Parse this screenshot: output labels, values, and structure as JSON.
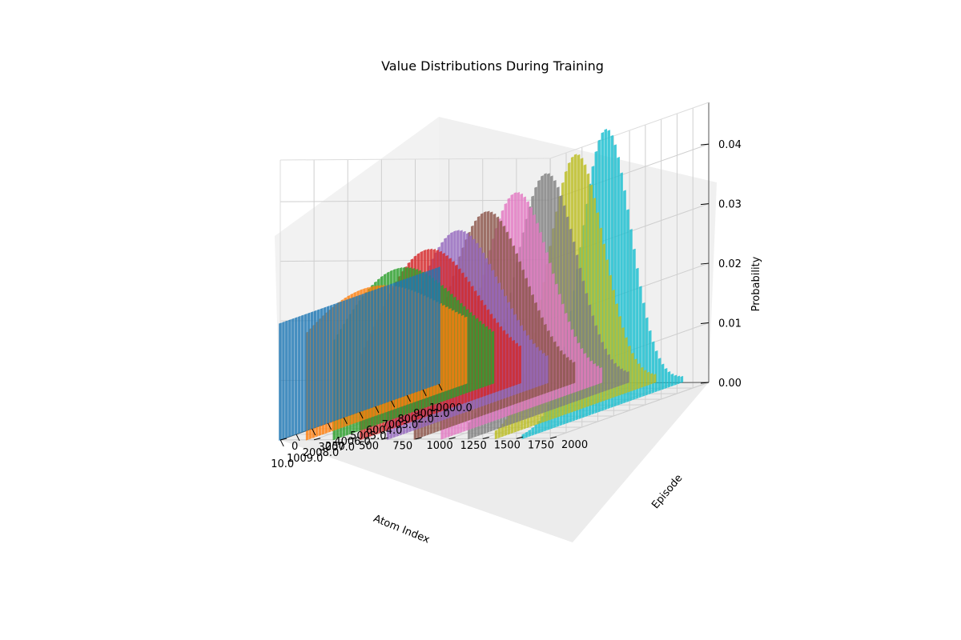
{
  "chart_data": {
    "type": "bar3d",
    "title": "Value Distributions During Training",
    "xlabel": "Atom Index",
    "ylabel": "Episode",
    "zlabel": "Probability",
    "x_tick_labels": [
      "10.0",
      "1009.0",
      "2008.0",
      "3007.0",
      "4006.0",
      "5005.0",
      "6004.0",
      "7003.0",
      "8002.0",
      "9001.0",
      "10000.0"
    ],
    "y_tick_labels": [
      "0",
      "250",
      "500",
      "750",
      "1000",
      "1250",
      "1500",
      "1750",
      "2000"
    ],
    "z_tick_labels": [
      "0.00",
      "0.01",
      "0.02",
      "0.03",
      "0.04"
    ],
    "xlim": [
      0,
      10000
    ],
    "ylim": [
      0,
      2000
    ],
    "zlim": [
      0,
      0.047
    ],
    "atoms": 51,
    "series": [
      {
        "episode": 0,
        "color": "#1f77b4",
        "shape": "uniform",
        "level": 0.0196
      },
      {
        "episode": 200,
        "color": "#ff7f0e",
        "shape": "gaussian",
        "peak": 0.0215,
        "center": 0.35,
        "width": 0.55
      },
      {
        "episode": 400,
        "color": "#2ca02c",
        "shape": "gaussian",
        "peak": 0.0245,
        "center": 0.38,
        "width": 0.42
      },
      {
        "episode": 600,
        "color": "#d62728",
        "shape": "gaussian",
        "peak": 0.0275,
        "center": 0.4,
        "width": 0.34
      },
      {
        "episode": 800,
        "color": "#9467bd",
        "shape": "gaussian",
        "peak": 0.0305,
        "center": 0.42,
        "width": 0.29
      },
      {
        "episode": 1000,
        "color": "#8c564b",
        "shape": "gaussian",
        "peak": 0.0335,
        "center": 0.44,
        "width": 0.255
      },
      {
        "episode": 1200,
        "color": "#e377c2",
        "shape": "gaussian",
        "peak": 0.0365,
        "center": 0.46,
        "width": 0.225
      },
      {
        "episode": 1400,
        "color": "#7f7f7f",
        "shape": "gaussian",
        "peak": 0.0395,
        "center": 0.48,
        "width": 0.2
      },
      {
        "episode": 1600,
        "color": "#bcbd22",
        "shape": "gaussian",
        "peak": 0.0425,
        "center": 0.5,
        "width": 0.18
      },
      {
        "episode": 1800,
        "color": "#17becf",
        "shape": "gaussian",
        "peak": 0.0465,
        "center": 0.52,
        "width": 0.16
      }
    ]
  }
}
